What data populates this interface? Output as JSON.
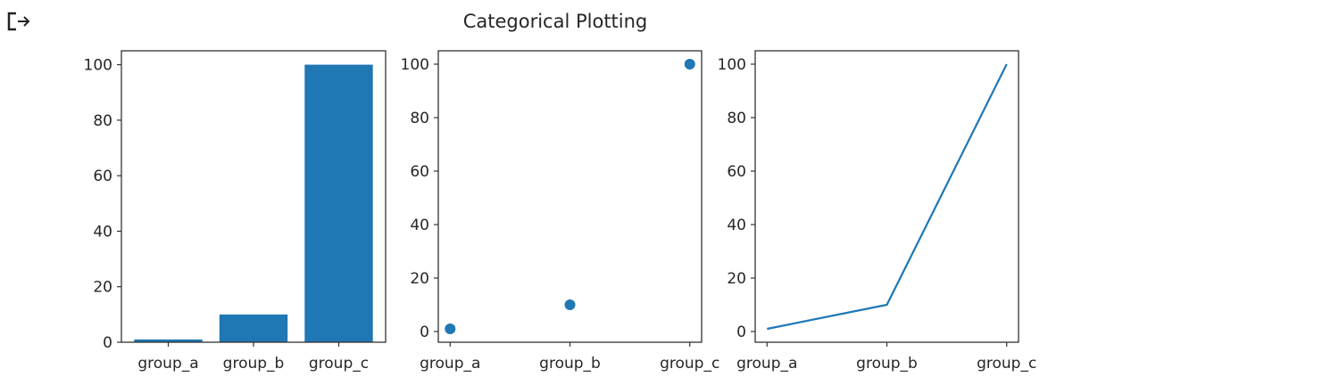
{
  "output_icon": "output-redirect-icon",
  "figure": {
    "title": "Categorical Plotting",
    "accent_color": "#1f77b4"
  },
  "chart_data": [
    {
      "type": "bar",
      "title": "",
      "categories": [
        "group_a",
        "group_b",
        "group_c"
      ],
      "values": [
        1,
        10,
        100
      ],
      "xlabel": "",
      "ylabel": "",
      "yticks": [
        0,
        20,
        40,
        60,
        80,
        100
      ],
      "ylim": [
        0,
        105
      ],
      "grid": false,
      "color": "#1f77b4"
    },
    {
      "type": "scatter",
      "title": "Categorical Plotting",
      "categories": [
        "group_a",
        "group_b",
        "group_c"
      ],
      "values": [
        1,
        10,
        100
      ],
      "xlabel": "",
      "ylabel": "",
      "yticks": [
        0,
        20,
        40,
        60,
        80,
        100
      ],
      "ylim": [
        -4,
        105
      ],
      "grid": false,
      "color": "#1f77b4"
    },
    {
      "type": "line",
      "title": "",
      "categories": [
        "group_a",
        "group_b",
        "group_c"
      ],
      "values": [
        1,
        10,
        100
      ],
      "xlabel": "",
      "ylabel": "",
      "yticks": [
        0,
        20,
        40,
        60,
        80,
        100
      ],
      "ylim": [
        -4,
        105
      ],
      "grid": false,
      "color": "#1f77b4"
    }
  ]
}
